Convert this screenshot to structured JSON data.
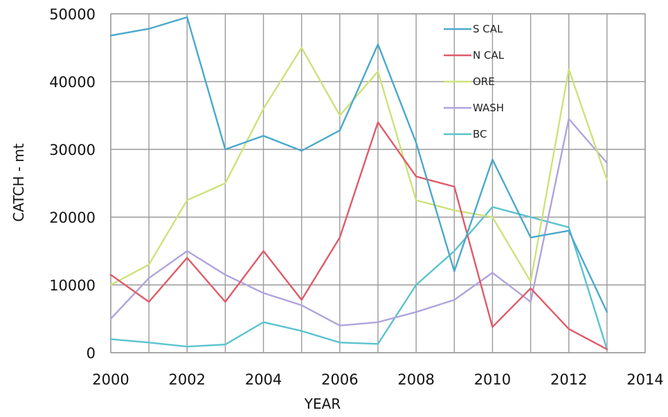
{
  "chart_data": {
    "type": "line",
    "xlabel": "YEAR",
    "ylabel": "CATCH - mt",
    "xlim": [
      2000,
      2014
    ],
    "ylim": [
      0,
      50000
    ],
    "xticks": [
      2000,
      2002,
      2004,
      2006,
      2008,
      2010,
      2012,
      2014
    ],
    "yticks": [
      0,
      10000,
      20000,
      30000,
      40000,
      50000
    ],
    "grid": true,
    "legend_position": "top-right inside plot",
    "x": [
      2000,
      2001,
      2002,
      2003,
      2004,
      2005,
      2006,
      2007,
      2008,
      2009,
      2010,
      2011,
      2012,
      2013
    ],
    "series": [
      {
        "name": "S CAL",
        "color": "#4aa8cc",
        "values": [
          46800,
          47800,
          49500,
          30000,
          32000,
          29800,
          32800,
          45500,
          31000,
          12000,
          28500,
          17000,
          18000,
          6000
        ]
      },
      {
        "name": "N CAL",
        "color": "#e05a68",
        "values": [
          11500,
          7500,
          14000,
          7500,
          15000,
          7800,
          17000,
          34000,
          26000,
          24500,
          3800,
          9500,
          3500,
          500
        ]
      },
      {
        "name": "ORE",
        "color": "#cde27a",
        "values": [
          10000,
          13000,
          22500,
          25000,
          36000,
          45000,
          35000,
          41500,
          22500,
          21000,
          20000,
          10500,
          41800,
          25500
        ]
      },
      {
        "name": "WASH",
        "color": "#b0a3dc",
        "values": [
          5000,
          11000,
          15000,
          11500,
          8800,
          7000,
          4000,
          4500,
          6000,
          7800,
          11800,
          7500,
          34500,
          28000
        ]
      },
      {
        "name": "BC",
        "color": "#5ac3cf",
        "values": [
          2000,
          1500,
          900,
          1200,
          4500,
          3200,
          1500,
          1300,
          10000,
          15000,
          21500,
          20000,
          18500,
          500
        ]
      }
    ]
  }
}
